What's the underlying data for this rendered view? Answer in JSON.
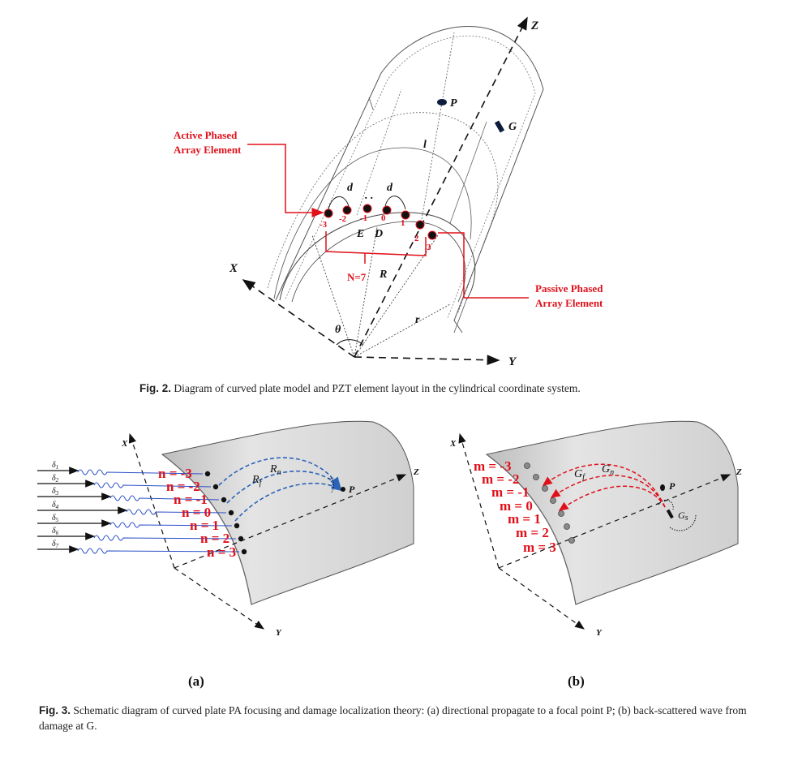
{
  "fig2": {
    "axes": {
      "x": "X",
      "y": "Y",
      "z": "Z"
    },
    "points": {
      "p": "P",
      "g": "G",
      "e": "E",
      "d": "D"
    },
    "symbols": {
      "l": "l",
      "d": "d",
      "dots": ". .",
      "r_big": "R",
      "r_small": "r",
      "theta": "θ"
    },
    "labels": {
      "active_line1": "Active Phased",
      "active_line2": "Array Element",
      "passive_line1": "Passive Phased",
      "passive_line2": "Array Element",
      "n_count": "N=7"
    },
    "element_indices": [
      "-3",
      "-2",
      "-1",
      "0",
      "1",
      "2",
      "3"
    ],
    "caption_label": "Fig. 2.",
    "caption_text": "Diagram of curved plate model and PZT element layout in the cylindrical coordinate system."
  },
  "fig3a": {
    "axes": {
      "x": "X",
      "y": "Y",
      "z": "Z"
    },
    "point": "P",
    "ray_labels": [
      "R",
      "R"
    ],
    "ray_subs": [
      "n",
      "f"
    ],
    "delays": [
      "δ",
      "δ",
      "δ",
      "δ",
      "δ",
      "δ",
      "δ"
    ],
    "delay_subs": [
      "1",
      "2",
      "3",
      "4",
      "5",
      "6",
      "7"
    ],
    "element_labels": [
      "n = -3",
      "n = -2",
      "n = -1",
      "n = 0",
      "n = 1",
      "n = 2",
      "n = 3"
    ],
    "panel": "(a)"
  },
  "fig3b": {
    "axes": {
      "x": "X",
      "y": "Y",
      "z": "Z"
    },
    "point": "P",
    "ray_labels": [
      "G",
      "G"
    ],
    "ray_subs": [
      "n",
      "f"
    ],
    "damage_label": "G",
    "damage_sub": "s",
    "element_labels": [
      "m = -3",
      "m = -2",
      "m = -1",
      "m = 0",
      "m = 1",
      "m = 2",
      "m = 3"
    ],
    "panel": "(b)"
  },
  "fig3_caption": {
    "label": "Fig. 3.",
    "text": "Schematic diagram of curved plate PA focusing and damage localization theory: (a) directional propagate to a focal point P; (b) back-scattered wave from damage at G."
  },
  "colors": {
    "red": "#e0101a",
    "blue": "#2b63b8",
    "plate": "#d9d9d9",
    "plateDark": "#9a9a9a"
  }
}
